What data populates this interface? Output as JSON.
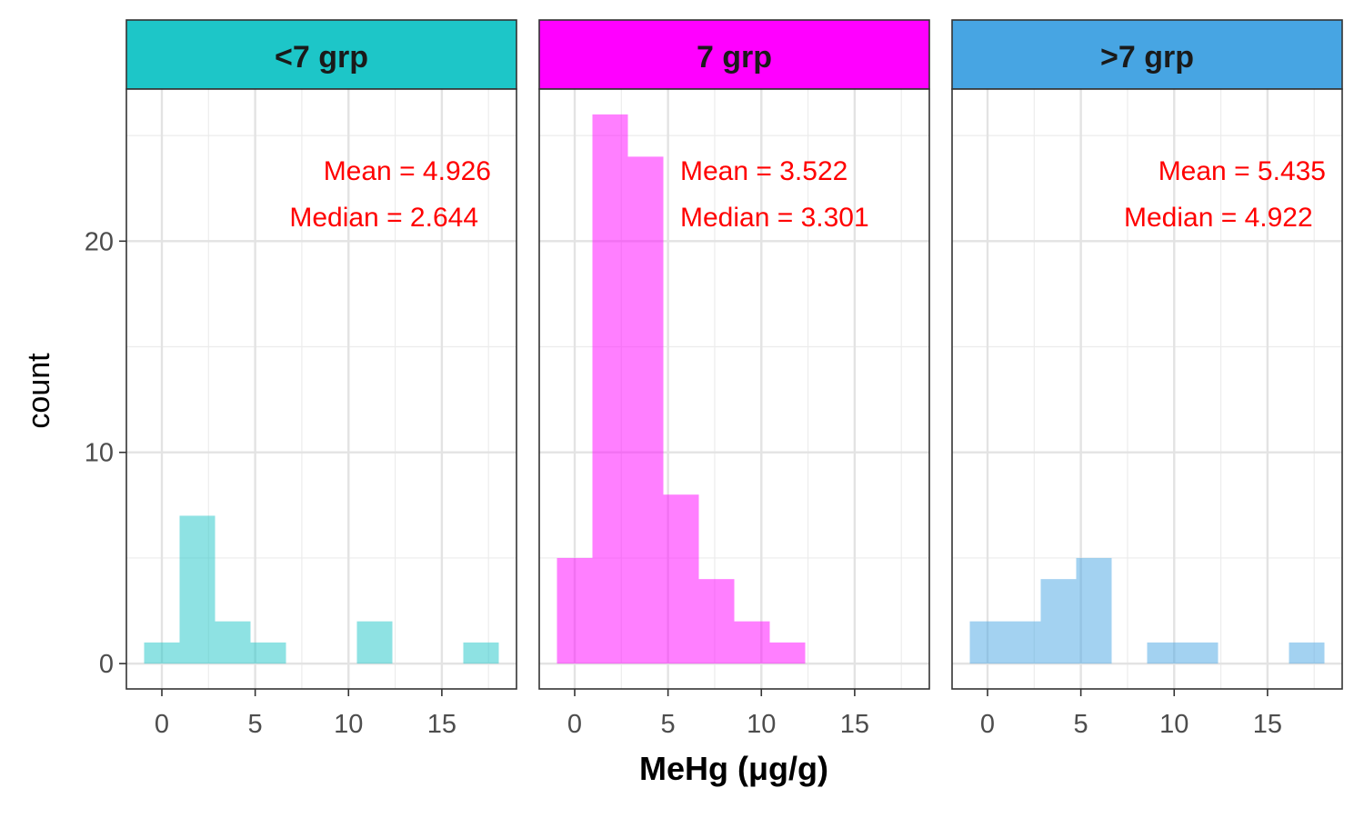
{
  "chart_data": {
    "type": "bar",
    "subtype": "faceted-histogram",
    "xlabel": "MeHg (μg/g)",
    "ylabel": "count",
    "x_ticks": [
      0,
      5,
      10,
      15
    ],
    "y_ticks": [
      0,
      10,
      20
    ],
    "xlim": [
      -1.9,
      19.0
    ],
    "ylim": [
      -1.2,
      27.2
    ],
    "bin_width": 1.9,
    "grid": true,
    "annotation_color": "#ff0000",
    "facets": [
      {
        "label": "<7 grp",
        "color": "#1dc6c8",
        "bins": [
          {
            "x0": -0.95,
            "x1": 0.95,
            "count": 1
          },
          {
            "x0": 0.95,
            "x1": 2.85,
            "count": 7
          },
          {
            "x0": 2.85,
            "x1": 4.75,
            "count": 2
          },
          {
            "x0": 4.75,
            "x1": 6.65,
            "count": 1
          },
          {
            "x0": 10.45,
            "x1": 12.35,
            "count": 2
          },
          {
            "x0": 16.15,
            "x1": 18.05,
            "count": 1
          }
        ],
        "mean_text": "Mean = 4.926",
        "median_text": "Median = 2.644"
      },
      {
        "label": "7 grp",
        "color": "#ff00ff",
        "bins": [
          {
            "x0": -0.95,
            "x1": 0.95,
            "count": 5
          },
          {
            "x0": 0.95,
            "x1": 2.85,
            "count": 26
          },
          {
            "x0": 2.85,
            "x1": 4.75,
            "count": 24
          },
          {
            "x0": 4.75,
            "x1": 6.65,
            "count": 8
          },
          {
            "x0": 6.65,
            "x1": 8.55,
            "count": 4
          },
          {
            "x0": 8.55,
            "x1": 10.45,
            "count": 2
          },
          {
            "x0": 10.45,
            "x1": 12.35,
            "count": 1
          }
        ],
        "mean_text": "Mean = 3.522",
        "median_text": "Median = 3.301"
      },
      {
        "label": ">7 grp",
        "color": "#47a5e3",
        "bins": [
          {
            "x0": -0.95,
            "x1": 0.95,
            "count": 2
          },
          {
            "x0": 0.95,
            "x1": 2.85,
            "count": 2
          },
          {
            "x0": 2.85,
            "x1": 4.75,
            "count": 4
          },
          {
            "x0": 4.75,
            "x1": 6.65,
            "count": 5
          },
          {
            "x0": 8.55,
            "x1": 10.45,
            "count": 1
          },
          {
            "x0": 10.45,
            "x1": 12.35,
            "count": 1
          },
          {
            "x0": 16.15,
            "x1": 18.05,
            "count": 1
          }
        ],
        "mean_text": "Mean = 5.435",
        "median_text": "Median = 4.922"
      }
    ]
  }
}
